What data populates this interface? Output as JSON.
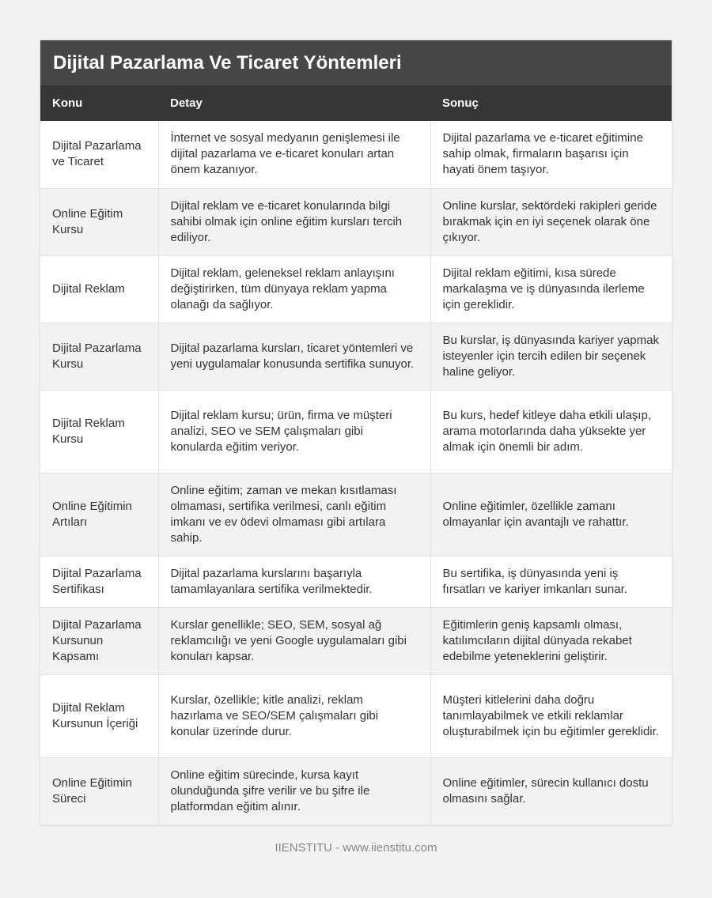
{
  "header": {
    "title": "Dijital Pazarlama Ve Ticaret Yöntemleri"
  },
  "table": {
    "columns": [
      "Konu",
      "Detay",
      "Sonuç"
    ],
    "rows": [
      [
        "Dijital Pazarlama ve Ticaret",
        "İnternet ve sosyal medyanın genişlemesi ile dijital pazarlama ve e-ticaret konuları artan önem kazanıyor.",
        "Dijital pazarlama ve e-ticaret eğitimine sahip olmak, firmaların başarısı için hayati önem taşıyor."
      ],
      [
        "Online Eğitim Kursu",
        "Dijital reklam ve e-ticaret konularında bilgi sahibi olmak için online eğitim kursları tercih ediliyor.",
        "Online kurslar, sektördeki rakipleri geride bırakmak için en iyi seçenek olarak öne çıkıyor."
      ],
      [
        "Dijital Reklam",
        "Dijital reklam, geleneksel reklam anlayışını değiştirirken, tüm dünyaya reklam yapma olanağı da sağlıyor.",
        "Dijital reklam eğitimi, kısa sürede markalaşma ve iş dünyasında ilerleme için gereklidir."
      ],
      [
        "Dijital Pazarlama Kursu",
        "Dijital pazarlama kursları, ticaret yöntemleri ve yeni uygulamalar konusunda sertifika sunuyor.",
        "Bu kurslar, iş dünyasında kariyer yapmak isteyenler için tercih edilen bir seçenek haline geliyor."
      ],
      [
        "Dijital Reklam Kursu",
        "Dijital reklam kursu; ürün, firma ve müşteri analizi, SEO ve SEM çalışmaları gibi konularda eğitim veriyor.",
        "Bu kurs, hedef kitleye daha etkili ulaşıp, arama motorlarında daha yüksekte yer almak için önemli bir adım."
      ],
      [
        "Online Eğitimin Artıları",
        "Online eğitim; zaman ve mekan kısıtlaması olmaması, sertifika verilmesi, canlı eğitim imkanı ve ev ödevi olmaması gibi artılara sahip.",
        "Online eğitimler, özellikle zamanı olmayanlar için avantajlı ve rahattır."
      ],
      [
        "Dijital Pazarlama Sertifikası",
        "Dijital pazarlama kurslarını başarıyla tamamlayanlara sertifika verilmektedir.",
        "Bu sertifika, iş dünyasında yeni iş fırsatları ve kariyer imkanları sunar."
      ],
      [
        "Dijital Pazarlama Kursunun Kapsamı",
        "Kurslar genellikle; SEO, SEM, sosyal ağ reklamcılığı ve yeni Google uygulamaları gibi konuları kapsar.",
        "Eğitimlerin geniş kapsamlı olması, katılımcıların dijital dünyada rekabet edebilme yeteneklerini geliştirir."
      ],
      [
        "Dijital Reklam Kursunun İçeriği",
        "Kurslar, özellikle; kitle analizi, reklam hazırlama ve SEO/SEM çalışmaları gibi konular üzerinde durur.",
        "Müşteri kitlelerini daha doğru tanımlayabilmek ve etkili reklamlar oluşturabilmek için bu eğitimler gereklidir."
      ],
      [
        "Online Eğitimin Süreci",
        "Online eğitim sürecinde, kursa kayıt olunduğunda şifre verilir ve bu şifre ile platformdan eğitim alınır.",
        "Online eğitimler, sürecin kullanıcı dostu olmasını sağlar."
      ]
    ]
  },
  "footer": "IIENSTITU - www.iienstitu.com"
}
